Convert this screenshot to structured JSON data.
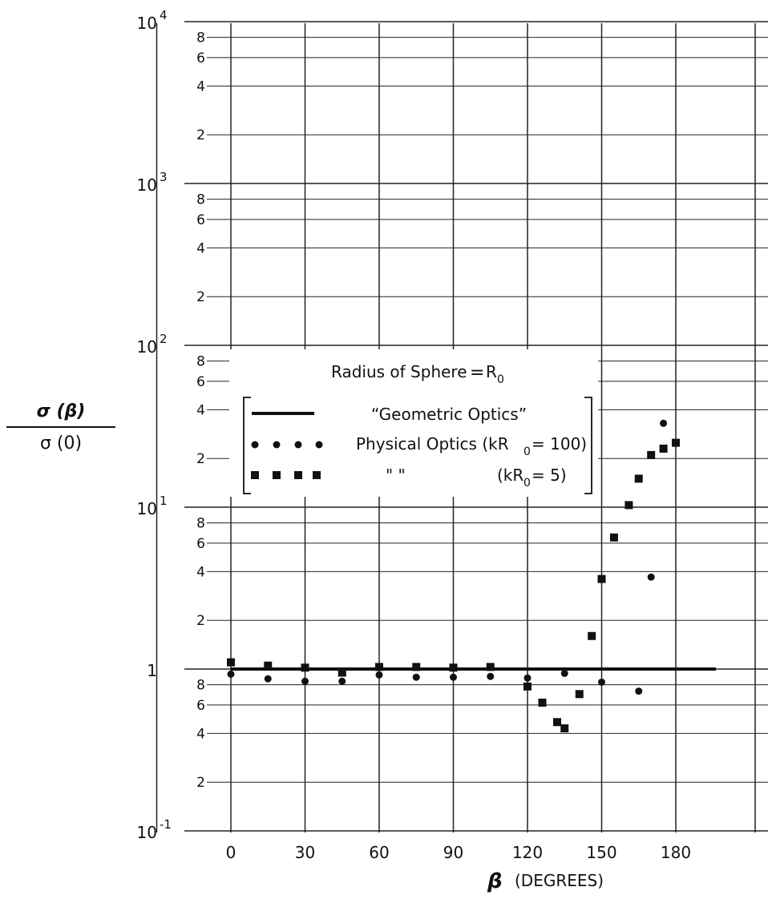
{
  "chart_data": {
    "type": "scatter",
    "title": "",
    "xlabel": "β (DEGREES)",
    "xlabel_symbol": "β",
    "xlabel_units": "(DEGREES)",
    "ylabel_numerator": "σ (β)",
    "ylabel_denominator": "σ (0)",
    "x_scale": "linear",
    "y_scale": "log",
    "xlim": [
      -30,
      210
    ],
    "ylim": [
      0.1,
      10000
    ],
    "x_ticks": [
      0,
      30,
      60,
      90,
      120,
      150,
      180
    ],
    "x_tick_labels": [
      "0",
      "30",
      "60",
      "90",
      "120",
      "150",
      "180"
    ],
    "y_decade_labels": [
      {
        "base": "10",
        "exp": "-1",
        "value": 0.1
      },
      {
        "base": "1",
        "exp": "",
        "value": 1
      },
      {
        "base": "10",
        "exp": "1",
        "value": 10
      },
      {
        "base": "10",
        "exp": "2",
        "value": 100
      },
      {
        "base": "10",
        "exp": "3",
        "value": 1000
      },
      {
        "base": "10",
        "exp": "4",
        "value": 10000
      }
    ],
    "y_minor_labels": [
      "2",
      "4",
      "6",
      "8"
    ],
    "grid": true,
    "legend": {
      "heading_text": "Radius of Sphere",
      "heading_symbol": "R",
      "heading_subscript": "0",
      "placement": "upper-middle",
      "entries": [
        {
          "marker": "line",
          "text": "“Geometric Optics”"
        },
        {
          "marker": "circle",
          "text": "Physical Optics (kR",
          "subscript": "0",
          "tail": "= 100)"
        },
        {
          "marker": "square",
          "text": "\"             \"",
          "paren": "(kR",
          "subscript": "0",
          "tail": "=  5)"
        }
      ]
    },
    "series": [
      {
        "name": "“Geometric Optics”",
        "marker": "line",
        "x": [
          0,
          180
        ],
        "y": [
          1.0,
          1.0
        ]
      },
      {
        "name": "Physical Optics (kR0= 100)",
        "marker": "circle",
        "x": [
          0,
          15,
          30,
          45,
          60,
          75,
          90,
          105,
          120,
          135,
          150,
          165,
          170,
          175
        ],
        "y": [
          0.93,
          0.87,
          0.84,
          0.84,
          0.92,
          0.89,
          0.89,
          0.9,
          0.88,
          0.94,
          0.83,
          0.73,
          3.7,
          33
        ]
      },
      {
        "name": "(kR0= 5)",
        "marker": "square",
        "x": [
          0,
          15,
          30,
          45,
          60,
          75,
          90,
          105,
          120,
          126,
          132,
          135,
          141,
          146,
          150,
          155,
          161,
          165,
          170,
          175,
          180
        ],
        "y": [
          1.1,
          1.05,
          1.02,
          0.95,
          1.03,
          1.03,
          1.02,
          1.03,
          0.78,
          0.62,
          0.47,
          0.43,
          0.7,
          1.6,
          3.6,
          6.5,
          10.3,
          15,
          21,
          23,
          25
        ]
      }
    ]
  }
}
